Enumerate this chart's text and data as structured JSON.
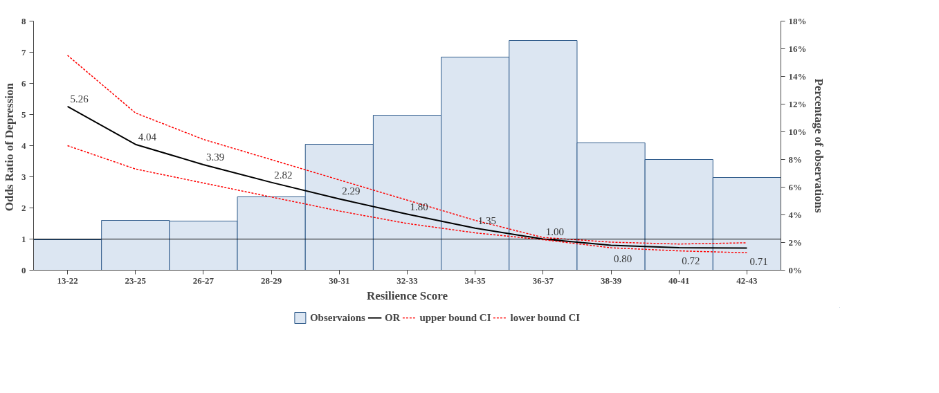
{
  "chart_data": {
    "type": "bar",
    "xlabel": "Resilience Score",
    "ylabel": "Odds Ratio of  Depression",
    "y2label": "Percentage of observations",
    "categories": [
      "13-22",
      "23-25",
      "26-27",
      "28-29",
      "30-31",
      "32-33",
      "34-35",
      "36-37",
      "38-39",
      "40-41",
      "42-43"
    ],
    "series": [
      {
        "name": "Observaions",
        "axis": "y2",
        "color": "#dce6f2",
        "values": [
          2.2,
          3.6,
          3.55,
          5.3,
          9.1,
          11.2,
          15.4,
          16.6,
          9.2,
          8.0,
          6.7
        ]
      },
      {
        "name": "OR",
        "type": "line",
        "color": "#000000",
        "line_style": "solid",
        "values": [
          5.26,
          4.04,
          3.39,
          2.82,
          2.29,
          1.8,
          1.35,
          1.0,
          0.8,
          0.72,
          0.71
        ],
        "value_labels": [
          "5.26",
          "4.04",
          "3.39",
          "2.82",
          "2.29",
          "1.80",
          "1.35",
          "1.00",
          "0.80",
          "0.72",
          "0.71"
        ]
      },
      {
        "name": "upper bound CI",
        "type": "line",
        "color": "#ff0000",
        "line_style": "dashed",
        "values": [
          6.9,
          5.05,
          4.2,
          3.55,
          2.9,
          2.25,
          1.6,
          1.05,
          0.9,
          0.84,
          0.88
        ]
      },
      {
        "name": "lower bound CI",
        "type": "line",
        "color": "#ff0000",
        "line_style": "dashed",
        "values": [
          4.0,
          3.25,
          2.8,
          2.35,
          1.9,
          1.5,
          1.2,
          0.98,
          0.72,
          0.62,
          0.56
        ]
      }
    ],
    "ylim": [
      0,
      8
    ],
    "yticks": [
      0,
      1,
      2,
      3,
      4,
      5,
      6,
      7,
      8
    ],
    "y2lim": [
      0,
      18
    ],
    "y2ticks": [
      {
        "value": 0,
        "label": "0%"
      },
      {
        "value": 2,
        "label": "2%"
      },
      {
        "value": 4,
        "label": "4%"
      },
      {
        "value": 6,
        "label": "6%"
      },
      {
        "value": 8,
        "label": "8%"
      },
      {
        "value": 10,
        "label": "10%"
      },
      {
        "value": 12,
        "label": "12%"
      },
      {
        "value": 14,
        "label": "14%"
      },
      {
        "value": 16,
        "label": "16%"
      },
      {
        "value": 18,
        "label": "18%"
      }
    ],
    "ref_lines": [
      {
        "axis": "y",
        "value": 1,
        "color": "#000000",
        "line_style": "solid"
      }
    ],
    "grid": false,
    "legend": "bottom",
    "marker": "none"
  }
}
